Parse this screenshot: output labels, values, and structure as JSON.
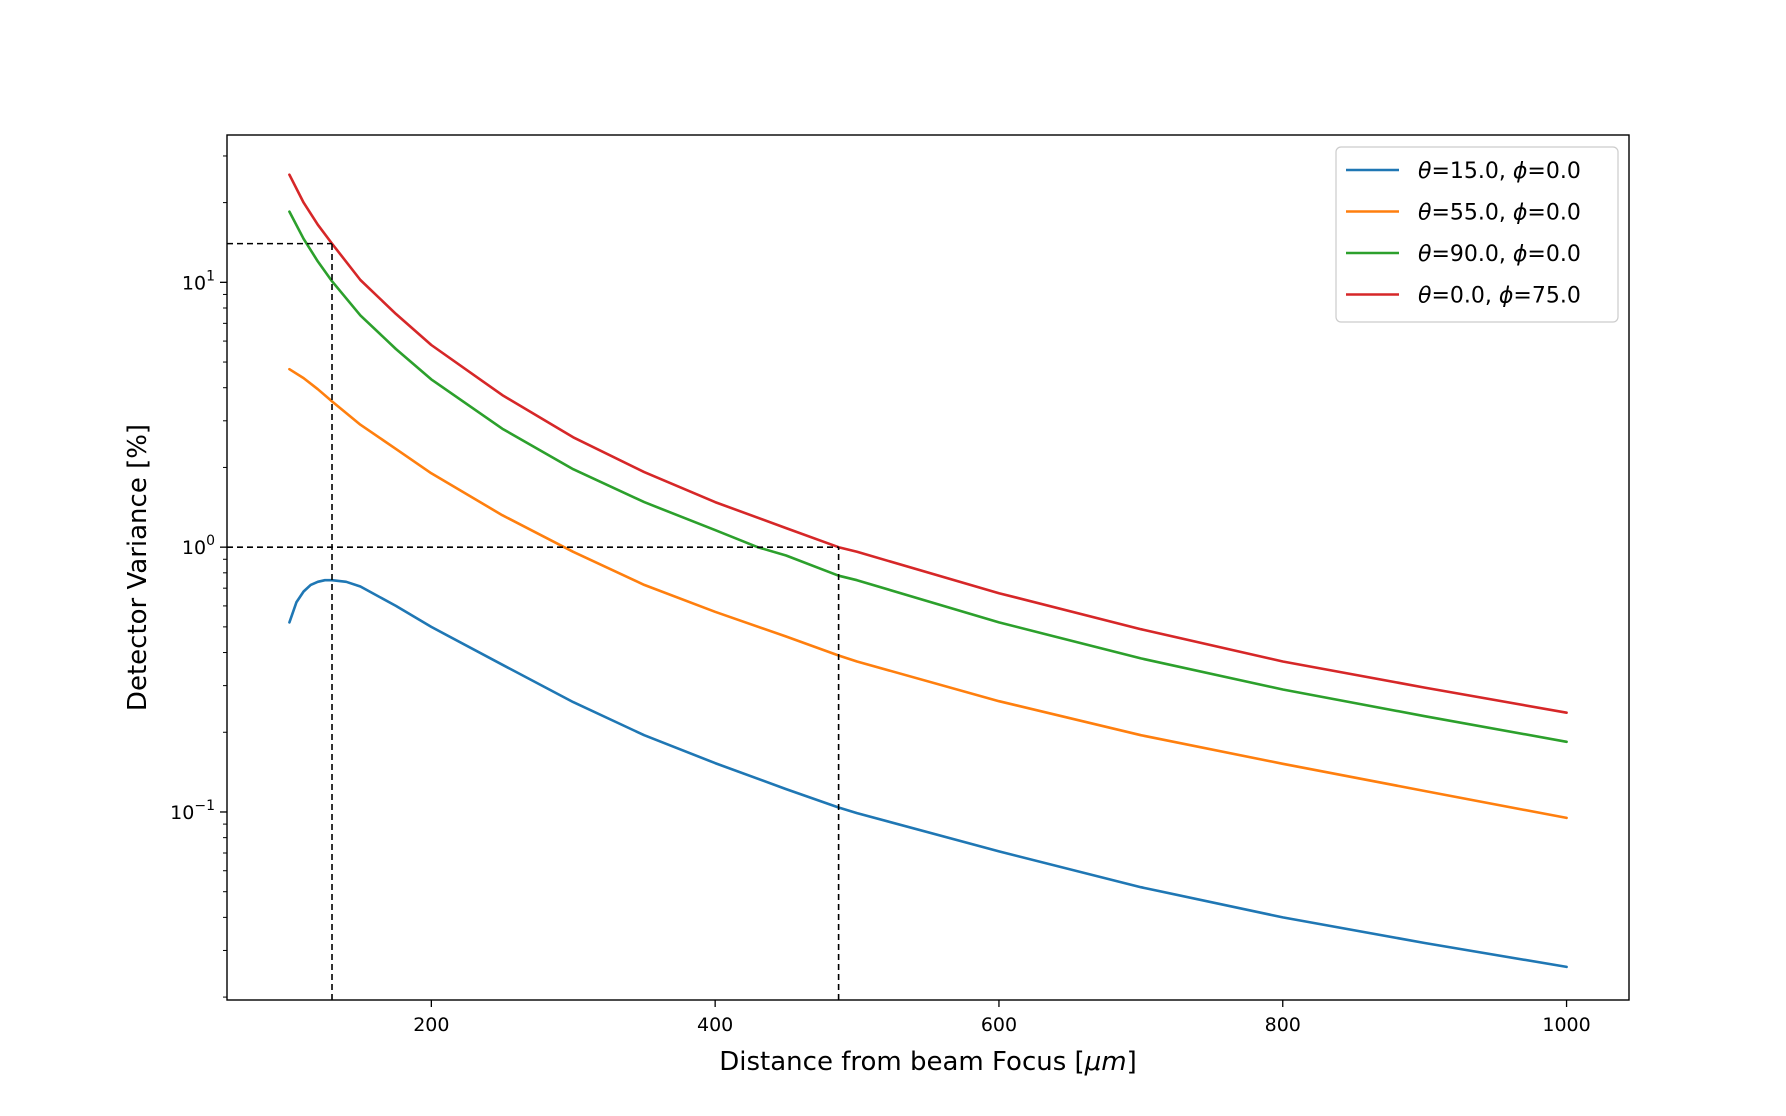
{
  "chart_data": {
    "type": "line",
    "title": "",
    "xlabel": "Distance from beam Focus [μm]",
    "xlabel_parts": {
      "text": "Distance from beam Focus [",
      "math": "μm",
      "close": "]"
    },
    "ylabel": "Detector Variance [%]",
    "yscale": "log",
    "xlim": [
      56,
      1044
    ],
    "ylim": [
      0.0195,
      36
    ],
    "grid": false,
    "legend_position": "top-right",
    "x_ticks": [
      {
        "value": 200,
        "label": "200"
      },
      {
        "value": 400,
        "label": "400"
      },
      {
        "value": 600,
        "label": "600"
      },
      {
        "value": 800,
        "label": "800"
      },
      {
        "value": 1000,
        "label": "1000"
      }
    ],
    "y_ticks_major": [
      {
        "value": 0.1,
        "base": "10",
        "exp": "−1"
      },
      {
        "value": 1,
        "base": "10",
        "exp": "0"
      },
      {
        "value": 10,
        "base": "10",
        "exp": "1"
      }
    ],
    "y_ticks_minor": [
      0.02,
      0.03,
      0.04,
      0.05,
      0.06,
      0.07,
      0.08,
      0.09,
      0.2,
      0.3,
      0.4,
      0.5,
      0.6,
      0.7,
      0.8,
      0.9,
      2,
      3,
      4,
      5,
      6,
      7,
      8,
      9,
      20,
      30
    ],
    "series": [
      {
        "name": "θ=15.0, ϕ=0.0",
        "name_parts": [
          "θ",
          "=15.0, ",
          "ϕ",
          "=0.0"
        ],
        "color": "#1f77b4",
        "x": [
          100,
          105,
          110,
          115,
          120,
          125,
          130,
          140,
          150,
          175,
          200,
          250,
          300,
          350,
          400,
          450,
          487,
          500,
          600,
          700,
          800,
          900,
          1000
        ],
        "y": [
          0.52,
          0.62,
          0.68,
          0.72,
          0.74,
          0.75,
          0.75,
          0.74,
          0.71,
          0.6,
          0.5,
          0.36,
          0.26,
          0.195,
          0.153,
          0.122,
          0.104,
          0.099,
          0.071,
          0.052,
          0.04,
          0.032,
          0.026
        ]
      },
      {
        "name": "θ=55.0, ϕ=0.0",
        "name_parts": [
          "θ",
          "=55.0, ",
          "ϕ",
          "=0.0"
        ],
        "color": "#ff7f0e",
        "x": [
          100,
          110,
          120,
          130,
          150,
          175,
          200,
          250,
          300,
          350,
          400,
          450,
          487,
          500,
          600,
          700,
          800,
          900,
          1000
        ],
        "y": [
          4.7,
          4.35,
          3.95,
          3.55,
          2.9,
          2.35,
          1.9,
          1.32,
          0.96,
          0.72,
          0.57,
          0.46,
          0.39,
          0.37,
          0.262,
          0.195,
          0.152,
          0.12,
          0.095
        ]
      },
      {
        "name": "θ=90.0, ϕ=0.0",
        "name_parts": [
          "θ",
          "=90.0, ",
          "ϕ",
          "=0.0"
        ],
        "color": "#2ca02c",
        "x": [
          100,
          110,
          120,
          130,
          150,
          175,
          200,
          250,
          300,
          350,
          400,
          430,
          450,
          487,
          500,
          600,
          700,
          800,
          900,
          1000
        ],
        "y": [
          18.5,
          14.6,
          12.0,
          10.1,
          7.5,
          5.6,
          4.3,
          2.8,
          1.97,
          1.48,
          1.16,
          1.0,
          0.93,
          0.78,
          0.75,
          0.52,
          0.38,
          0.29,
          0.23,
          0.184
        ]
      },
      {
        "name": "θ=0.0, ϕ=75.0",
        "name_parts": [
          "θ",
          "=0.0, ",
          "ϕ",
          "=75.0"
        ],
        "color": "#d62728",
        "x": [
          100,
          110,
          120,
          130,
          150,
          175,
          200,
          250,
          300,
          350,
          400,
          450,
          487,
          500,
          600,
          700,
          800,
          900,
          1000
        ],
        "y": [
          25.5,
          20.0,
          16.5,
          14.0,
          10.2,
          7.6,
          5.8,
          3.75,
          2.6,
          1.92,
          1.48,
          1.18,
          1.0,
          0.96,
          0.67,
          0.49,
          0.37,
          0.295,
          0.237
        ]
      }
    ],
    "reference_lines": [
      {
        "orientation": "horizontal",
        "y": 1.0,
        "x_from": 56,
        "x_to": 487
      },
      {
        "orientation": "horizontal",
        "y": 14.0,
        "x_from": 56,
        "x_to": 130
      },
      {
        "orientation": "vertical",
        "x": 130,
        "y_from": 0.0195,
        "y_to": 14.0
      },
      {
        "orientation": "vertical",
        "x": 487,
        "y_from": 0.0195,
        "y_to": 1.0
      }
    ]
  }
}
